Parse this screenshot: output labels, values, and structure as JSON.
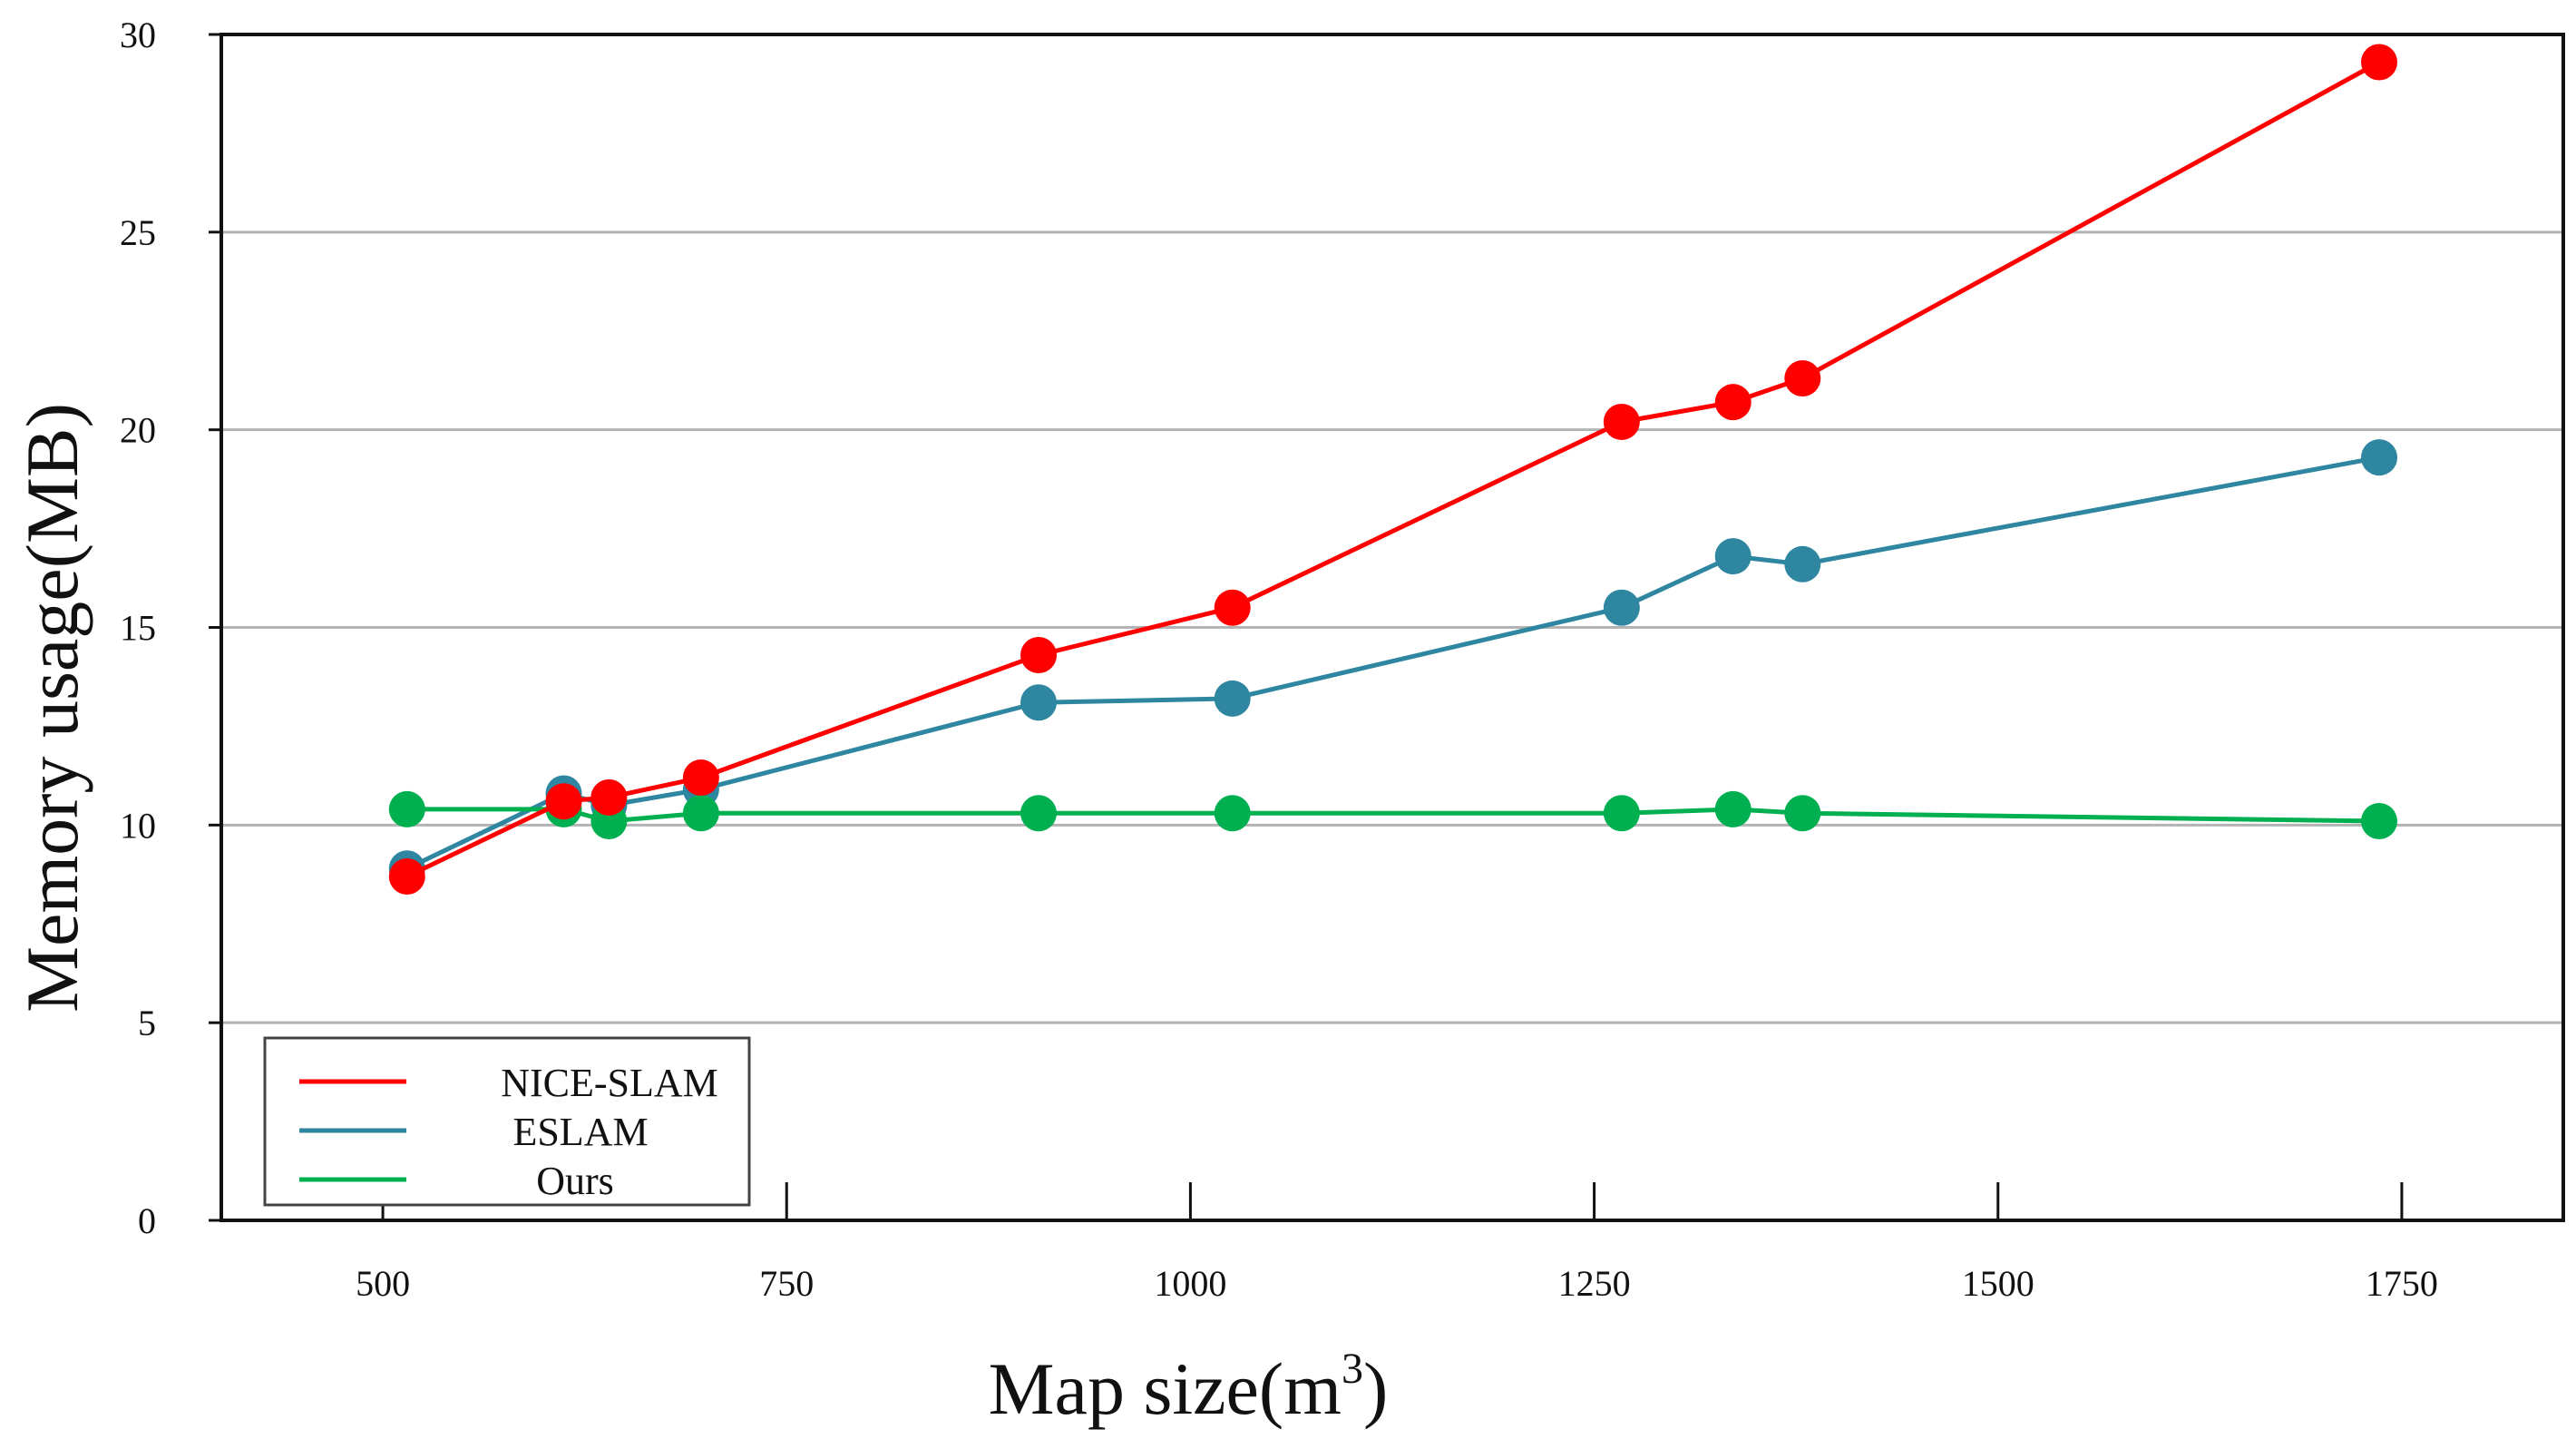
{
  "chart_data": {
    "type": "line",
    "title": "",
    "xlabel": "Map size(m",
    "xlabel_superscript": "3",
    "xlabel_suffix": ")",
    "ylabel": "Memory usage(MB)",
    "xlim": [
      400,
      1850
    ],
    "ylim": [
      0,
      30
    ],
    "xticks": [
      500,
      750,
      1000,
      1250,
      1500,
      1750
    ],
    "yticks": [
      0,
      5,
      10,
      15,
      20,
      25,
      30
    ],
    "grid": "horizontal",
    "legend_position": "bottom-left",
    "x": [
      515,
      612,
      640,
      697,
      906,
      1026,
      1267,
      1336,
      1379,
      1736
    ],
    "series": [
      {
        "name": "NICE-SLAM",
        "color": "#ff0000",
        "values": [
          8.7,
          10.6,
          10.7,
          11.2,
          14.3,
          15.5,
          20.2,
          20.7,
          21.3,
          29.3
        ]
      },
      {
        "name": "ESLAM",
        "color": "#2e86a0",
        "values": [
          8.9,
          10.8,
          10.5,
          10.9,
          13.1,
          13.2,
          15.5,
          16.8,
          16.6,
          19.3
        ]
      },
      {
        "name": "Ours",
        "color": "#00b050",
        "values": [
          10.4,
          10.4,
          10.1,
          10.3,
          10.3,
          10.3,
          10.3,
          10.4,
          10.3,
          10.1
        ]
      }
    ]
  }
}
